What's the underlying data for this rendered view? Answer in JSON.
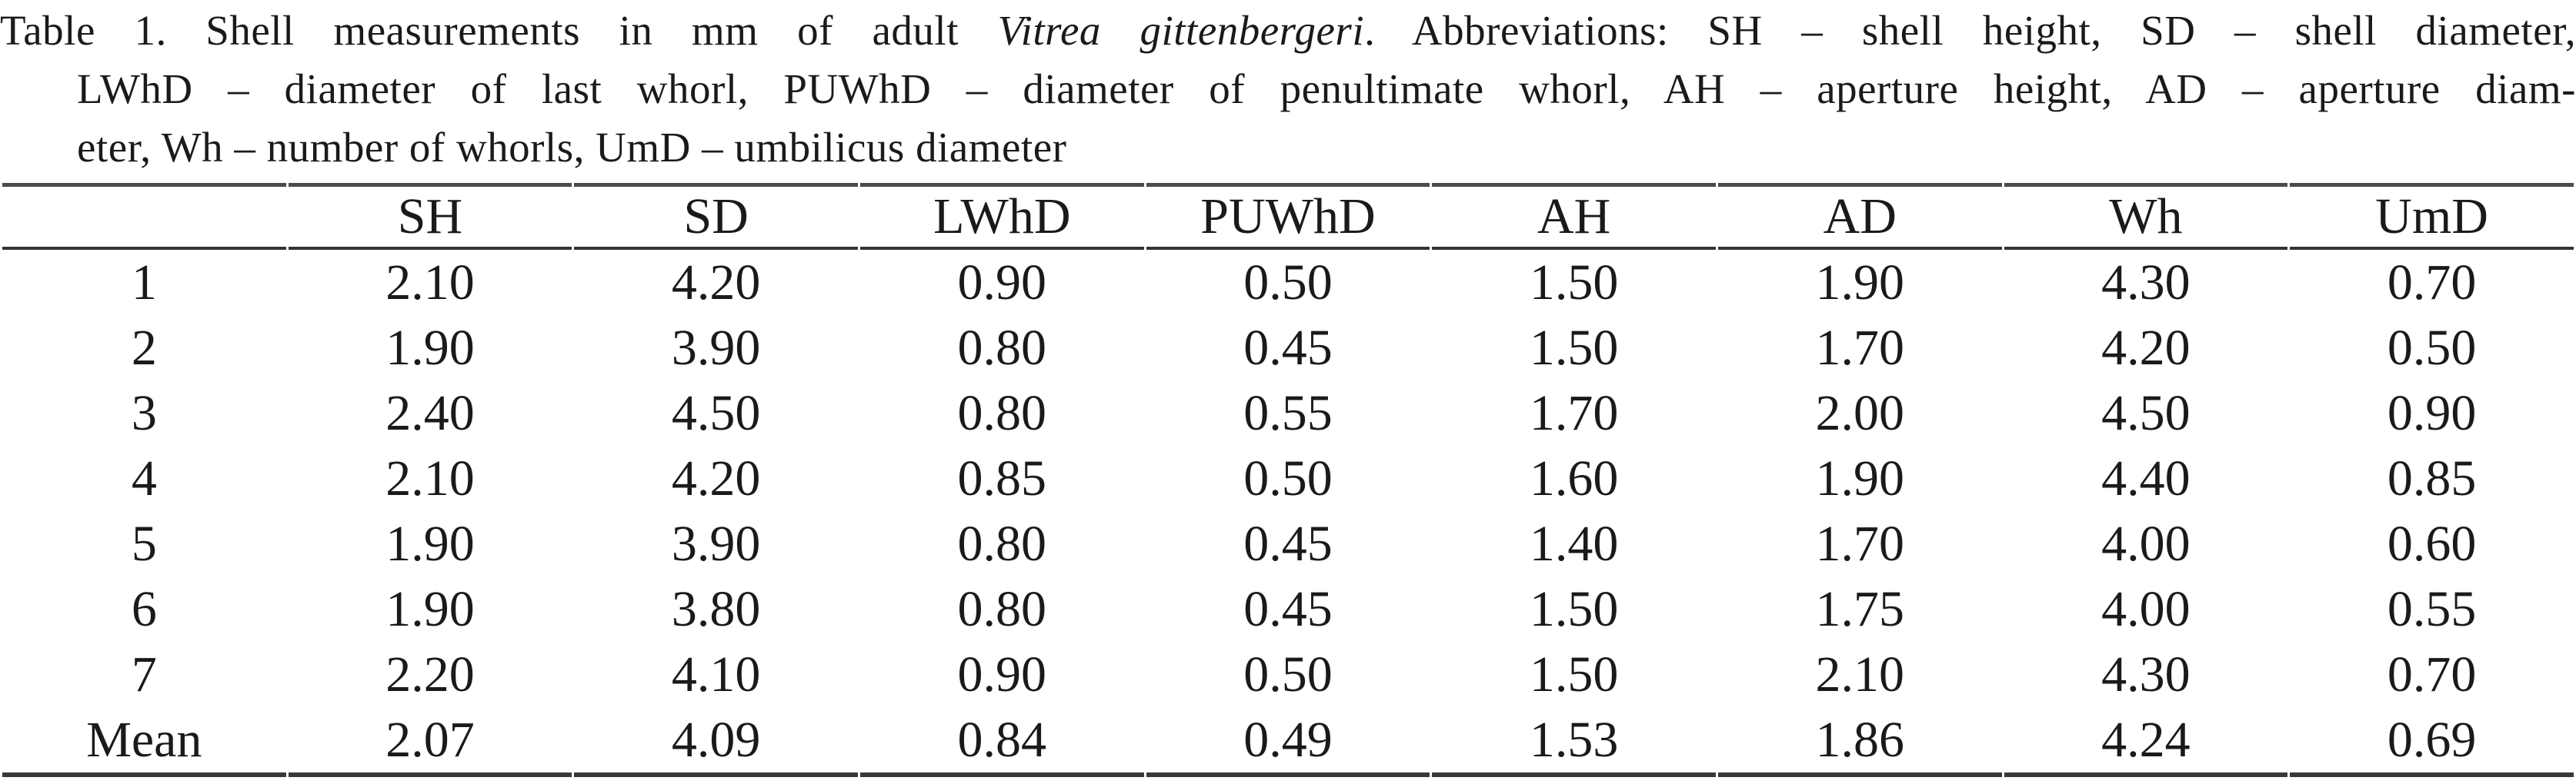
{
  "caption": {
    "line1_pre": "Table 1. Shell measurements in mm of adult ",
    "line1_italic": "Vitrea gittenbergeri",
    "line1_post": ". Abbreviations: SH – shell height, SD – shell diameter,",
    "line2": "LWhD – diameter of last whorl, PUWhD – diameter of penultimate whorl, AH – aperture height, AD – aperture diam-",
    "line3": "eter, Wh – number of whorls, UmD – umbilicus diameter"
  },
  "table": {
    "columns": [
      "",
      "SH",
      "SD",
      "LWhD",
      "PUWhD",
      "AH",
      "AD",
      "Wh",
      "UmD"
    ],
    "rows": [
      {
        "label": "1",
        "values": [
          "2.10",
          "4.20",
          "0.90",
          "0.50",
          "1.50",
          "1.90",
          "4.30",
          "0.70"
        ]
      },
      {
        "label": "2",
        "values": [
          "1.90",
          "3.90",
          "0.80",
          "0.45",
          "1.50",
          "1.70",
          "4.20",
          "0.50"
        ]
      },
      {
        "label": "3",
        "values": [
          "2.40",
          "4.50",
          "0.80",
          "0.55",
          "1.70",
          "2.00",
          "4.50",
          "0.90"
        ]
      },
      {
        "label": "4",
        "values": [
          "2.10",
          "4.20",
          "0.85",
          "0.50",
          "1.60",
          "1.90",
          "4.40",
          "0.85"
        ]
      },
      {
        "label": "5",
        "values": [
          "1.90",
          "3.90",
          "0.80",
          "0.45",
          "1.40",
          "1.70",
          "4.00",
          "0.60"
        ]
      },
      {
        "label": "6",
        "values": [
          "1.90",
          "3.80",
          "0.80",
          "0.45",
          "1.50",
          "1.75",
          "4.00",
          "0.55"
        ]
      },
      {
        "label": "7",
        "values": [
          "2.20",
          "4.10",
          "0.90",
          "0.50",
          "1.50",
          "2.10",
          "4.30",
          "0.70"
        ]
      },
      {
        "label": "Mean",
        "values": [
          "2.07",
          "4.09",
          "0.84",
          "0.49",
          "1.53",
          "1.86",
          "4.24",
          "0.69"
        ]
      }
    ]
  },
  "colors": {
    "text": "#1a1a1a",
    "rule": "#3a3a3a",
    "background": "#ffffff"
  }
}
